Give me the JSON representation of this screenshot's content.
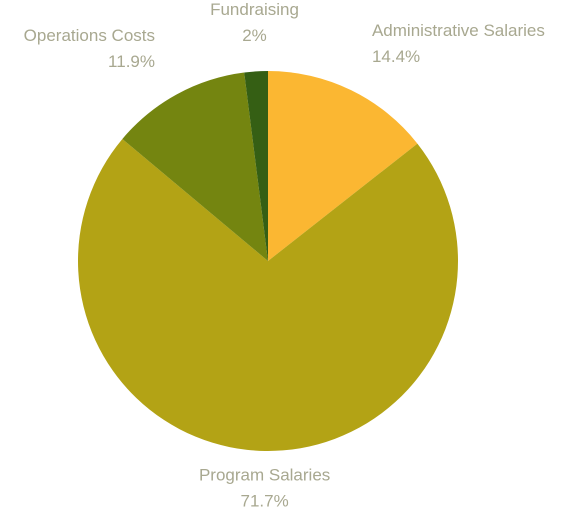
{
  "chart_data": {
    "type": "pie",
    "categories": [
      "Administrative Salaries",
      "Program Salaries",
      "Operations Costs",
      "Fundraising"
    ],
    "values": [
      14.4,
      71.7,
      11.9,
      2
    ],
    "value_labels": [
      "14.4%",
      "71.7%",
      "11.9%",
      "2%"
    ],
    "colors": [
      "#fbb732",
      "#b3a315",
      "#748510",
      "#355f14"
    ]
  }
}
